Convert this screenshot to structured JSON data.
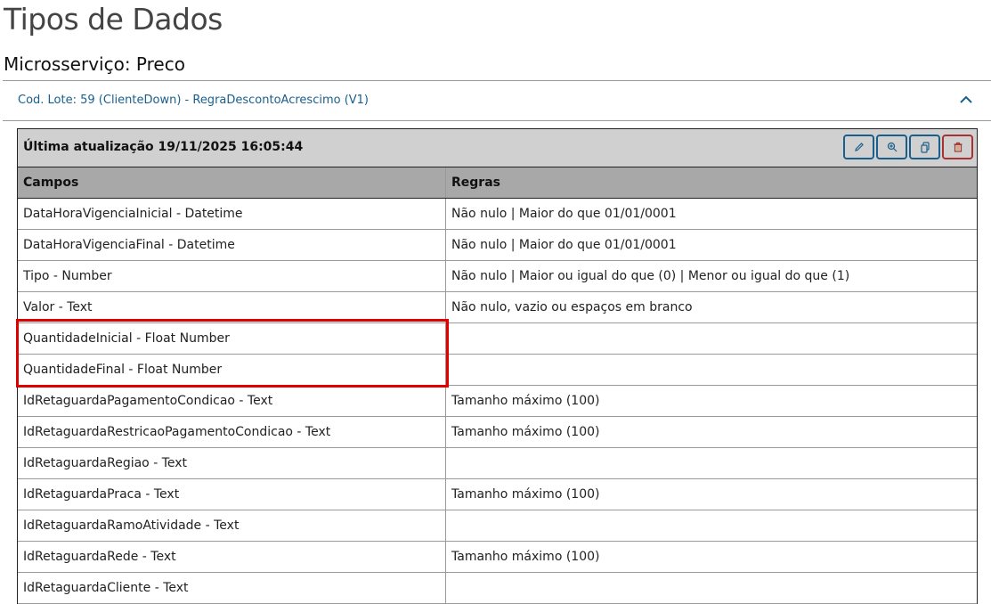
{
  "page": {
    "title": "Tipos de Dados",
    "subtitle": "Microsserviço: Preco"
  },
  "lote": {
    "label": "Cod. Lote: 59 (ClienteDown) - RegraDescontoAcrescimo (V1)",
    "icon": "chevron-up-icon"
  },
  "panel": {
    "last_update": "Última atualização 19/11/2025 16:05:44",
    "buttons": [
      {
        "name": "edit-button",
        "icon": "pencil-icon"
      },
      {
        "name": "view-button",
        "icon": "zoom-in-icon"
      },
      {
        "name": "copy-button",
        "icon": "copy-icon"
      },
      {
        "name": "delete-button",
        "icon": "trash-icon"
      }
    ],
    "columns": [
      "Campos",
      "Regras"
    ],
    "rows": [
      [
        "DataHoraVigenciaInicial - Datetime",
        "Não nulo | Maior do que 01/01/0001"
      ],
      [
        "DataHoraVigenciaFinal - Datetime",
        "Não nulo | Maior do que 01/01/0001"
      ],
      [
        "Tipo - Number",
        "Não nulo | Maior ou igual do que (0) | Menor ou igual do que (1)"
      ],
      [
        "Valor - Text",
        "Não nulo, vazio ou espaços em branco"
      ],
      [
        "QuantidadeInicial - Float Number",
        ""
      ],
      [
        "QuantidadeFinal - Float Number",
        ""
      ],
      [
        "IdRetaguardaPagamentoCondicao - Text",
        "Tamanho máximo (100)"
      ],
      [
        "IdRetaguardaRestricaoPagamentoCondicao - Text",
        "Tamanho máximo (100)"
      ],
      [
        "IdRetaguardaRegiao - Text",
        ""
      ],
      [
        "IdRetaguardaPraca - Text",
        "Tamanho máximo (100)"
      ],
      [
        "IdRetaguardaRamoAtividade - Text",
        ""
      ],
      [
        "IdRetaguardaRede - Text",
        "Tamanho máximo (100)"
      ],
      [
        "IdRetaguardaCliente - Text",
        ""
      ]
    ]
  },
  "colors": {
    "accent": "#1a5f8c",
    "danger": "#a83232",
    "highlight": "#e00000"
  }
}
